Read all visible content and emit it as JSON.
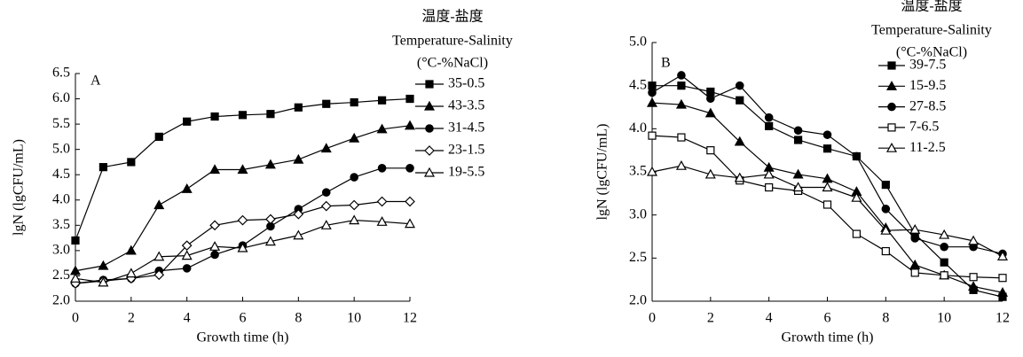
{
  "chart_data": [
    {
      "type": "line",
      "panel_label": "A",
      "x_label": "Growth time (h)",
      "y_label": "lgN (lgCFU/mL)",
      "legend_title": [
        "温度-盐度",
        "Temperature-Salinity",
        "(°C-%NaCl)"
      ],
      "x": [
        0,
        1,
        2,
        3,
        4,
        5,
        6,
        7,
        8,
        9,
        10,
        11,
        12
      ],
      "xlim": [
        0,
        12
      ],
      "xticks": [
        0,
        2,
        4,
        6,
        8,
        10,
        12
      ],
      "ylim": [
        2,
        6.5
      ],
      "yticks": [
        {
          "value": 2,
          "label": "2.0"
        },
        2.5,
        {
          "value": 3,
          "label": "3.0"
        },
        3.5,
        {
          "value": 4,
          "label": "4.0"
        },
        4.5,
        {
          "value": 5,
          "label": "5.0"
        },
        5.5,
        {
          "value": 6,
          "label": "6.0"
        },
        6.5
      ],
      "series": [
        {
          "name": "35-0.5",
          "color": "#000000",
          "marker": "square-filled",
          "values": [
            3.2,
            4.65,
            4.75,
            5.25,
            5.55,
            5.65,
            5.68,
            5.7,
            5.83,
            5.9,
            5.93,
            5.97,
            6.0
          ]
        },
        {
          "name": "43-3.5",
          "color": "#000000",
          "marker": "triangle-filled",
          "values": [
            2.6,
            2.7,
            3.0,
            3.9,
            4.22,
            4.6,
            4.6,
            4.7,
            4.8,
            5.02,
            5.22,
            5.4,
            5.47
          ]
        },
        {
          "name": "31-4.5",
          "color": "#000000",
          "marker": "circle-filled",
          "values": [
            2.35,
            2.42,
            2.45,
            2.6,
            2.65,
            2.92,
            3.1,
            3.48,
            3.82,
            4.15,
            4.45,
            4.63,
            4.63
          ]
        },
        {
          "name": "23-1.5",
          "color": "#000000",
          "marker": "diamond-open",
          "values": [
            2.35,
            2.4,
            2.45,
            2.52,
            3.1,
            3.5,
            3.6,
            3.62,
            3.72,
            3.88,
            3.9,
            3.97,
            3.97
          ]
        },
        {
          "name": "19-5.5",
          "color": "#000000",
          "marker": "triangle-open",
          "values": [
            2.45,
            2.37,
            2.55,
            2.88,
            2.9,
            3.08,
            3.05,
            3.18,
            3.3,
            3.5,
            3.6,
            3.57,
            3.53
          ]
        }
      ]
    },
    {
      "type": "line",
      "panel_label": "B",
      "x_label": "Growth time (h)",
      "y_label": "lgN (lgCFU/mL)",
      "legend_title": [
        "温度-盐度",
        "Temperature-Salinity",
        "(°C-%NaCl)"
      ],
      "x": [
        0,
        1,
        2,
        3,
        4,
        5,
        6,
        7,
        8,
        9,
        10,
        11,
        12
      ],
      "xlim": [
        0,
        12
      ],
      "xticks": [
        0,
        2,
        4,
        6,
        8,
        10,
        12
      ],
      "ylim": [
        2,
        5
      ],
      "yticks": [
        {
          "value": 2,
          "label": "2.0"
        },
        2.5,
        {
          "value": 3,
          "label": "3.0"
        },
        3.5,
        {
          "value": 4,
          "label": "4.0"
        },
        4.5,
        {
          "value": 5,
          "label": "5.0"
        }
      ],
      "series": [
        {
          "name": "39-7.5",
          "color": "#000000",
          "marker": "square-filled",
          "values": [
            4.5,
            4.5,
            4.43,
            4.33,
            4.03,
            3.87,
            3.77,
            3.68,
            3.35,
            2.78,
            2.45,
            2.13,
            2.05
          ]
        },
        {
          "name": "15-9.5",
          "color": "#000000",
          "marker": "triangle-filled",
          "values": [
            4.3,
            4.28,
            4.18,
            3.85,
            3.55,
            3.47,
            3.42,
            3.27,
            2.85,
            2.42,
            2.3,
            2.17,
            2.1
          ]
        },
        {
          "name": "27-8.5",
          "color": "#000000",
          "marker": "circle-filled",
          "values": [
            4.42,
            4.62,
            4.35,
            4.5,
            4.13,
            3.98,
            3.93,
            3.68,
            3.07,
            2.73,
            2.63,
            2.63,
            2.55
          ]
        },
        {
          "name": "7-6.5",
          "color": "#000000",
          "marker": "square-open",
          "values": [
            3.92,
            3.9,
            3.75,
            3.4,
            3.32,
            3.28,
            3.12,
            2.78,
            2.58,
            2.33,
            2.3,
            2.28,
            2.27
          ]
        },
        {
          "name": "11-2.5",
          "color": "#000000",
          "marker": "triangle-open",
          "values": [
            3.5,
            3.57,
            3.47,
            3.43,
            3.47,
            3.32,
            3.32,
            3.2,
            2.82,
            2.83,
            2.77,
            2.7,
            2.52
          ]
        }
      ]
    }
  ]
}
